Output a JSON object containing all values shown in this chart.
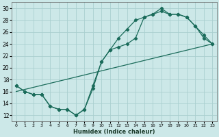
{
  "xlabel": "Humidex (Indice chaleur)",
  "bg_color": "#cce8e8",
  "line_color": "#1a6b5a",
  "grid_color": "#aacfcf",
  "xlim": [
    -0.5,
    23.5
  ],
  "ylim": [
    11,
    31
  ],
  "xticks": [
    0,
    1,
    2,
    3,
    4,
    5,
    6,
    7,
    8,
    9,
    10,
    11,
    12,
    13,
    14,
    15,
    16,
    17,
    18,
    19,
    20,
    21,
    22,
    23
  ],
  "yticks": [
    12,
    14,
    16,
    18,
    20,
    22,
    24,
    26,
    28,
    30
  ],
  "line1_x": [
    0,
    1,
    2,
    3,
    4,
    5,
    6,
    7,
    8,
    9,
    10,
    11,
    12,
    13,
    14,
    15,
    16,
    17,
    18,
    19,
    20,
    21,
    22,
    23
  ],
  "line1_y": [
    17,
    16,
    15.5,
    15.5,
    13.5,
    13,
    13,
    12,
    13,
    16.5,
    21,
    23,
    23.5,
    24,
    25,
    28.5,
    29,
    30,
    29,
    29,
    28.5,
    27,
    25.5,
    24
  ],
  "line2_x": [
    0,
    1,
    2,
    3,
    4,
    5,
    6,
    7,
    8,
    9,
    10,
    11,
    12,
    13,
    14,
    15,
    16,
    17,
    18,
    19,
    20,
    21,
    22,
    23
  ],
  "line2_y": [
    17,
    16,
    15.5,
    15.5,
    13.5,
    13,
    13,
    12,
    13,
    17,
    21,
    23,
    25,
    26.5,
    28,
    28.5,
    29,
    29.5,
    29,
    29,
    28.5,
    27,
    25,
    24
  ],
  "line3_x": [
    0,
    23
  ],
  "line3_y": [
    16,
    24
  ]
}
